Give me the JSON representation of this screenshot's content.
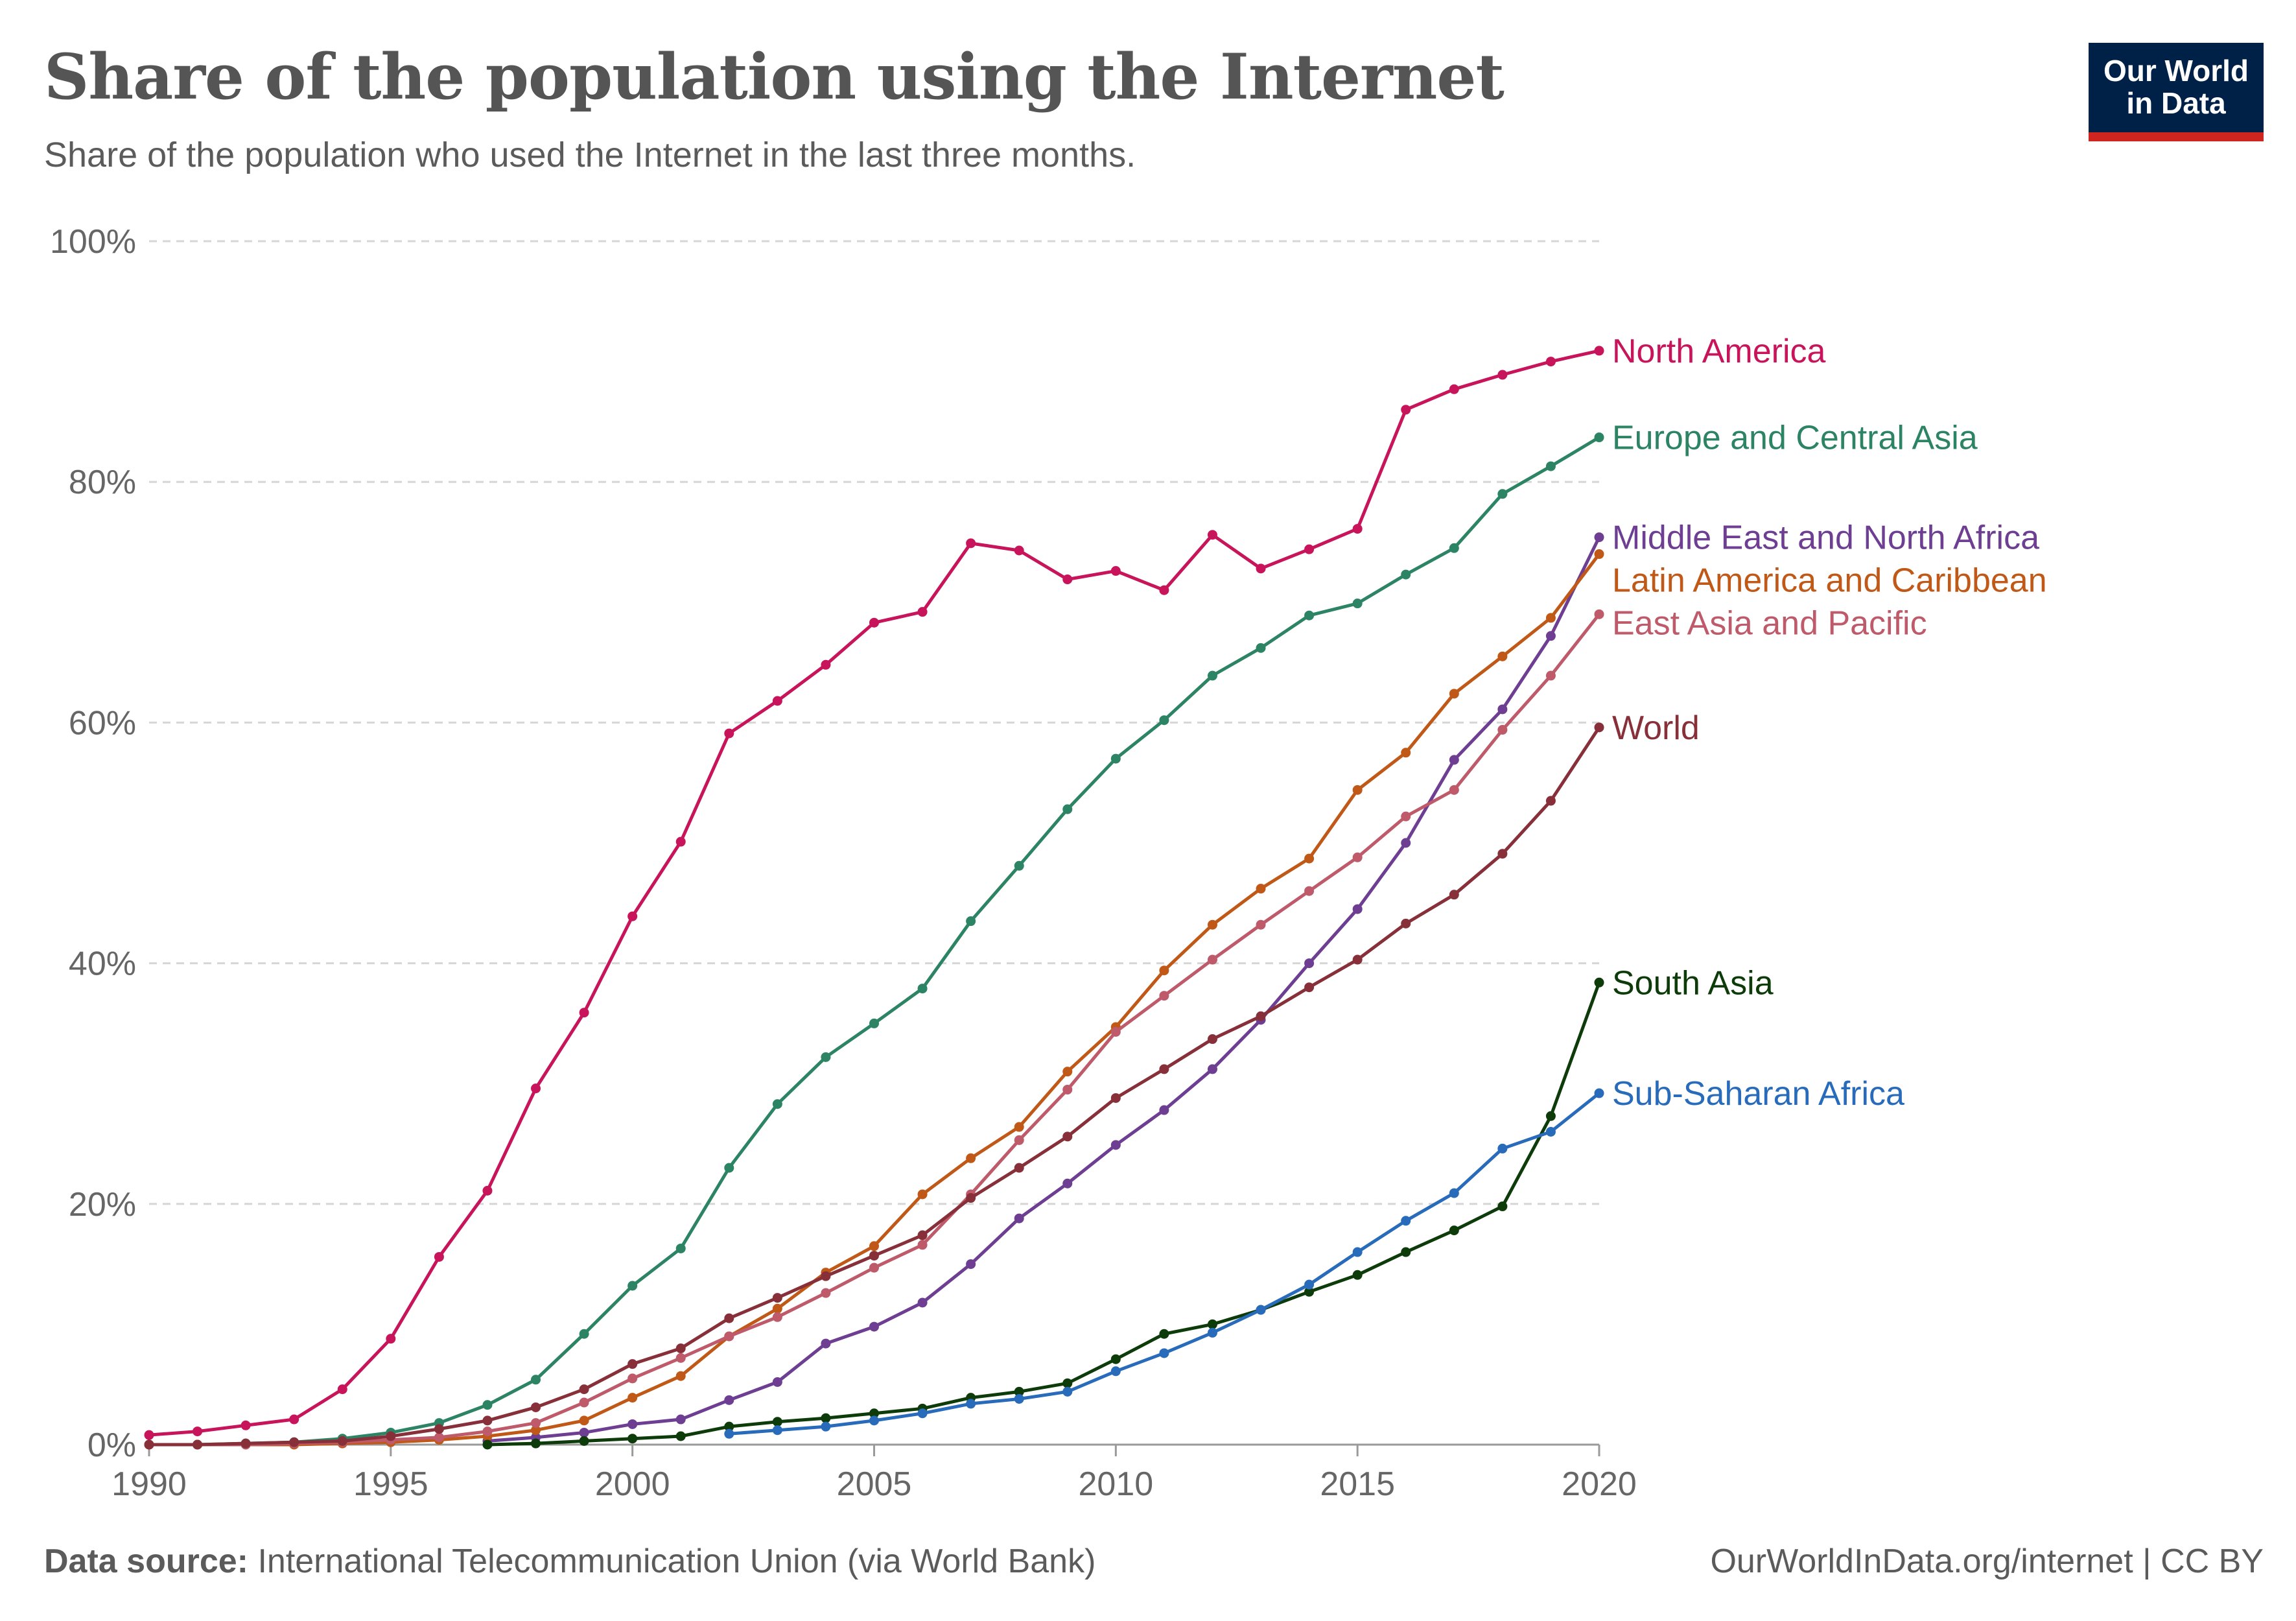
{
  "header": {
    "title": "Share of the population using the Internet",
    "subtitle": "Share of the population who used the Internet in the last three months."
  },
  "logo": {
    "line1": "Our World",
    "line2": "in Data"
  },
  "footer": {
    "source_label": "Data source:",
    "source_text": " International Telecommunication Union (via World Bank)",
    "credit": "OurWorldInData.org/internet | CC BY"
  },
  "chart_data": {
    "type": "line",
    "title": "Share of the population using the Internet",
    "subtitle": "Share of the population who used the Internet in the last three months.",
    "xlabel": "",
    "ylabel": "",
    "xlim": [
      1990,
      2020
    ],
    "ylim": [
      0,
      100
    ],
    "x_ticks": [
      "1990",
      "1995",
      "2000",
      "2005",
      "2010",
      "2015",
      "2020"
    ],
    "y_ticks": [
      "0%",
      "20%",
      "40%",
      "60%",
      "80%",
      "100%"
    ],
    "grid": "horizontal dashed",
    "legend": "right, labels at line ends",
    "series": [
      {
        "name": "North America",
        "color": "#c7145a",
        "start": 1990,
        "values": [
          0.8,
          1.1,
          1.6,
          2.1,
          4.6,
          8.8,
          15.6,
          21.1,
          29.6,
          35.9,
          43.9,
          50.1,
          59.1,
          61.8,
          64.8,
          68.3,
          69.2,
          74.9,
          74.3,
          71.9,
          72.6,
          71.0,
          75.6,
          72.8,
          74.4,
          76.1,
          86.0,
          87.7,
          88.9,
          90.0,
          90.9
        ]
      },
      {
        "name": "Europe and Central Asia",
        "color": "#2c8465",
        "start": 1990,
        "values": [
          0.0,
          0.0,
          0.1,
          0.2,
          0.5,
          1.0,
          1.8,
          3.3,
          5.4,
          9.2,
          13.2,
          16.3,
          23.0,
          28.3,
          32.2,
          35.0,
          37.9,
          43.5,
          48.1,
          52.8,
          57.0,
          60.2,
          63.9,
          66.2,
          68.9,
          69.9,
          72.3,
          74.5,
          79.0,
          81.3,
          83.7
        ]
      },
      {
        "name": "Middle East and North Africa",
        "color": "#6d3e91",
        "start": 1997,
        "values": [
          0.3,
          0.6,
          1.0,
          1.7,
          2.1,
          3.7,
          5.2,
          8.4,
          9.8,
          11.8,
          15.0,
          18.8,
          21.7,
          24.9,
          27.8,
          31.2,
          35.3,
          40.0,
          44.5,
          50.0,
          56.9,
          61.1,
          67.2,
          75.4
        ]
      },
      {
        "name": "Latin America and Caribbean",
        "color": "#c05917",
        "start": 1990,
        "values": [
          0.0,
          0.0,
          0.0,
          0.0,
          0.1,
          0.2,
          0.4,
          0.7,
          1.2,
          2.0,
          3.9,
          5.7,
          9.0,
          11.3,
          14.3,
          16.5,
          20.8,
          23.8,
          26.4,
          31.0,
          34.7,
          39.4,
          43.2,
          46.2,
          48.7,
          54.4,
          57.5,
          62.4,
          65.5,
          68.7,
          74.0
        ]
      },
      {
        "name": "East Asia and Pacific",
        "color": "#be5a6a",
        "start": 1990,
        "values": [
          0.0,
          0.0,
          0.0,
          0.1,
          0.2,
          0.4,
          0.6,
          1.1,
          1.8,
          3.5,
          5.5,
          7.2,
          9.0,
          10.6,
          12.6,
          14.7,
          16.6,
          20.8,
          25.3,
          29.5,
          34.3,
          37.3,
          40.3,
          43.2,
          46.0,
          48.8,
          52.2,
          54.4,
          59.4,
          63.9,
          69.0
        ]
      },
      {
        "name": "World",
        "color": "#883039",
        "start": 1990,
        "values": [
          0.0,
          0.0,
          0.1,
          0.2,
          0.3,
          0.7,
          1.3,
          2.0,
          3.1,
          4.6,
          6.7,
          8.0,
          10.5,
          12.2,
          14.0,
          15.7,
          17.4,
          20.5,
          23.0,
          25.6,
          28.8,
          31.2,
          33.7,
          35.6,
          38.0,
          40.3,
          43.3,
          45.7,
          49.1,
          53.5,
          59.6
        ]
      },
      {
        "name": "South Asia",
        "color": "#0d3c0a",
        "start": 1997,
        "values": [
          0.0,
          0.1,
          0.3,
          0.5,
          0.7,
          1.5,
          1.9,
          2.2,
          2.6,
          3.0,
          3.9,
          4.4,
          5.1,
          7.1,
          9.2,
          10.0,
          11.2,
          12.7,
          14.1,
          16.0,
          17.8,
          19.8,
          27.3,
          38.4
        ]
      },
      {
        "name": "Sub-Saharan Africa",
        "color": "#286bbb",
        "start": 2002,
        "values": [
          0.9,
          1.2,
          1.5,
          2.0,
          2.6,
          3.4,
          3.8,
          4.4,
          6.1,
          7.6,
          9.3,
          11.2,
          13.3,
          16.0,
          18.6,
          20.9,
          24.6,
          26.0,
          29.2
        ]
      }
    ]
  }
}
